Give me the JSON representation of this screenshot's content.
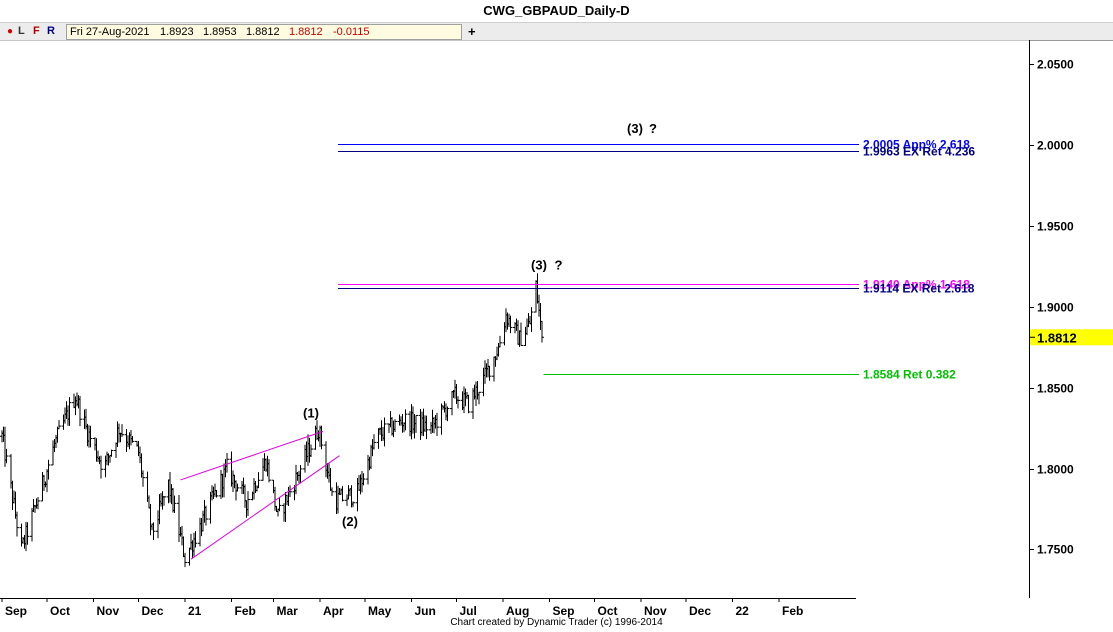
{
  "title": "CWG_GBPAUD_Daily-D",
  "toolbar": {
    "buttons": {
      "l": "L",
      "f": "F",
      "r": "R"
    },
    "date": "Fri 27-Aug-2021",
    "open": "1.8923",
    "high": "1.8953",
    "low": "1.8812",
    "close": "1.8812",
    "change": "-0.0115",
    "add_label": "+"
  },
  "footer": "Chart created by Dynamic Trader  (c) 1996-2014",
  "colors": {
    "bars": "#000000",
    "channel": "#e000e0",
    "level_blue": "#0000ff",
    "level_navy": "#000080",
    "level_magenta": "#ff00ff",
    "level_green": "#00c000",
    "price_flag": "#ffff00",
    "close_red": "#cc0000"
  },
  "chart_data": {
    "type": "ohlc",
    "title": "CWG_GBPAUD_Daily-D",
    "y_range": [
      1.72,
      2.065
    ],
    "y_ticks": [
      "1.7500",
      "1.8000",
      "1.8500",
      "1.9000",
      "1.9500",
      "2.0000",
      "2.0500"
    ],
    "x_labels": [
      "Sep",
      "Oct",
      "Nov",
      "Dec",
      "21",
      "Feb",
      "Mar",
      "Apr",
      "May",
      "Jun",
      "Jul",
      "Aug",
      "Sep",
      "Oct",
      "Nov",
      "Dec",
      "22",
      "Feb"
    ],
    "last_price": "1.8812",
    "grid": false,
    "path": [
      {
        "date": "2020-09-01",
        "price": 1.82
      },
      {
        "date": "2020-09-14",
        "price": 1.75
      },
      {
        "date": "2020-09-28",
        "price": 1.79
      },
      {
        "date": "2020-10-06",
        "price": 1.815
      },
      {
        "date": "2020-10-20",
        "price": 1.845
      },
      {
        "date": "2020-10-27",
        "price": 1.825
      },
      {
        "date": "2020-11-08",
        "price": 1.8
      },
      {
        "date": "2020-11-18",
        "price": 1.825
      },
      {
        "date": "2020-12-01",
        "price": 1.81
      },
      {
        "date": "2020-12-10",
        "price": 1.76
      },
      {
        "date": "2020-12-21",
        "price": 1.79
      },
      {
        "date": "2021-01-01",
        "price": 1.745
      },
      {
        "date": "2021-01-14",
        "price": 1.77
      },
      {
        "date": "2021-01-29",
        "price": 1.8
      },
      {
        "date": "2021-02-11",
        "price": 1.78
      },
      {
        "date": "2021-02-24",
        "price": 1.805
      },
      {
        "date": "2021-03-04",
        "price": 1.77
      },
      {
        "date": "2021-03-19",
        "price": 1.8
      },
      {
        "date": "2021-03-31",
        "price": 1.825
      },
      {
        "date": "2021-04-10",
        "price": 1.78
      },
      {
        "date": "2021-04-26",
        "price": 1.785
      },
      {
        "date": "2021-05-09",
        "price": 1.82
      },
      {
        "date": "2021-05-27",
        "price": 1.83
      },
      {
        "date": "2021-06-14",
        "price": 1.825
      },
      {
        "date": "2021-06-30",
        "price": 1.845
      },
      {
        "date": "2021-07-09",
        "price": 1.84
      },
      {
        "date": "2021-07-19",
        "price": 1.855
      },
      {
        "date": "2021-07-29",
        "price": 1.875
      },
      {
        "date": "2021-08-03",
        "price": 1.895
      },
      {
        "date": "2021-08-12",
        "price": 1.88
      },
      {
        "date": "2021-08-19",
        "price": 1.89
      },
      {
        "date": "2021-08-23",
        "price": 1.913
      },
      {
        "date": "2021-08-27",
        "price": 1.8812
      }
    ],
    "trendlines": [
      {
        "from": {
          "date": "2020-12-29",
          "price": 1.793
        },
        "to": {
          "date": "2021-04-03",
          "price": 1.823
        }
      },
      {
        "from": {
          "date": "2021-01-05",
          "price": 1.744
        },
        "to": {
          "date": "2021-04-14",
          "price": 1.808
        }
      }
    ],
    "levels": [
      {
        "price": 2.0005,
        "label": "2.0005 App% 2.618",
        "color": "#0000ff",
        "from": "2021-04-13"
      },
      {
        "price": 1.9963,
        "label": "1.9963 EX Ret 4.236",
        "color": "#000080",
        "from": "2021-04-13"
      },
      {
        "price": 1.914,
        "label": "1.9140 App% 1.618",
        "color": "#ff00ff",
        "from": "2021-04-13"
      },
      {
        "price": 1.9114,
        "label": "1.9114 EX Ret 2.618",
        "color": "#000080",
        "from": "2021-04-13"
      },
      {
        "price": 1.8584,
        "label": "1.8584 Ret 0.382",
        "color": "#00c000",
        "from": "2021-08-28"
      }
    ],
    "annotations": [
      {
        "text": "(1)",
        "date": "2021-03-26",
        "price": 1.8315
      },
      {
        "text": "(2)",
        "date": "2021-04-21",
        "price": 1.7645
      },
      {
        "text": "(3)",
        "date": "2021-08-25",
        "price": 1.9231
      },
      {
        "text": "?",
        "date": "2021-09-07",
        "price": 1.9231
      },
      {
        "text": "(3)",
        "date": "2021-10-28",
        "price": 2.0075
      },
      {
        "text": "?",
        "date": "2021-11-09",
        "price": 2.0075
      }
    ]
  }
}
